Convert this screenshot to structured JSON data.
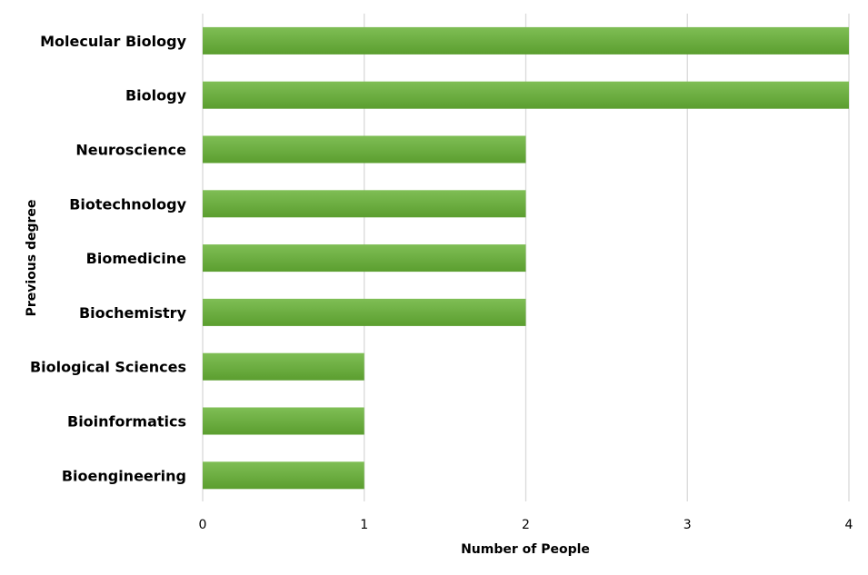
{
  "chart_data": {
    "type": "bar",
    "orientation": "horizontal",
    "categories": [
      "Molecular Biology",
      "Biology",
      "Neuroscience",
      "Biotechnology",
      "Biomedicine",
      "Biochemistry",
      "Biological Sciences",
      "Bioinformatics ",
      "Bioengineering"
    ],
    "values": [
      4,
      4,
      2,
      2,
      2,
      2,
      1,
      1,
      1
    ],
    "xlabel": "Number of People",
    "ylabel": "Previous degree",
    "xlim": [
      0,
      4
    ],
    "xticks": [
      "0",
      "1",
      "2",
      "3",
      "4"
    ],
    "grid": "vertical",
    "bar_color": "#6aaf3c",
    "bar_color_top": "#7fbe55",
    "bar_color_bottom": "#5b9e2f"
  }
}
